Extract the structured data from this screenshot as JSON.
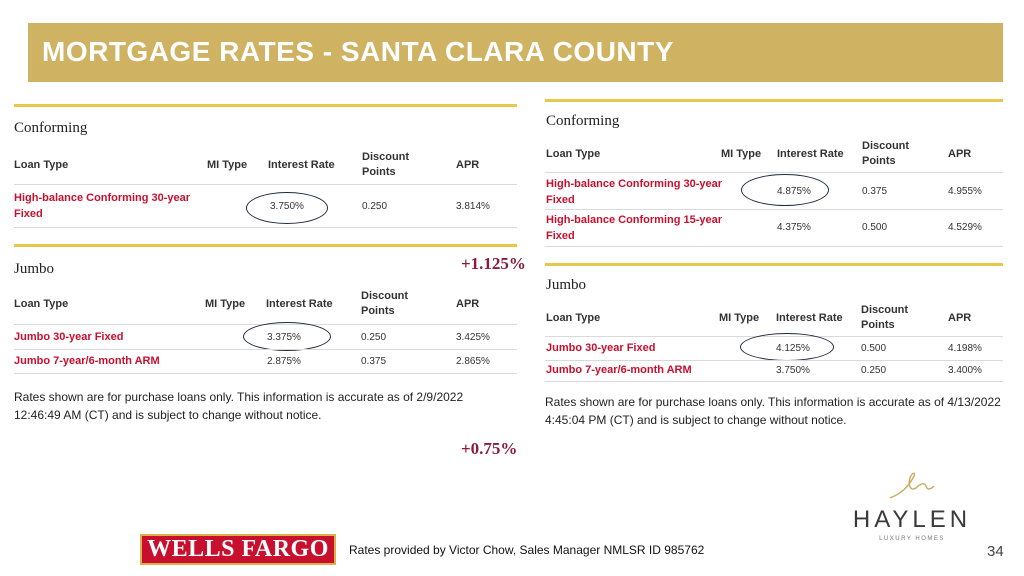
{
  "title": "MORTGAGE RATES - SANTA CLARA COUNTY",
  "left": {
    "conforming": {
      "section": "Conforming",
      "headers": [
        "Loan Type",
        "MI Type",
        "Interest Rate",
        "Discount Points",
        "APR"
      ],
      "rows": [
        {
          "loan": "High-balance Conforming 30-year Fixed",
          "rate": "3.750%",
          "points": "0.250",
          "apr": "3.814%"
        }
      ]
    },
    "jumbo": {
      "section": "Jumbo",
      "headers": [
        "Loan Type",
        "MI Type",
        "Interest Rate",
        "Discount Points",
        "APR"
      ],
      "rows": [
        {
          "loan": "Jumbo 30-year Fixed",
          "rate": "3.375%",
          "points": "0.250",
          "apr": "3.425%"
        },
        {
          "loan": "Jumbo 7-year/6-month ARM",
          "rate": "2.875%",
          "points": "0.375",
          "apr": "2.865%"
        }
      ]
    },
    "note": "Rates shown are for purchase loans only. This information is accurate as of 2/9/2022 12:46:49 AM (CT) and is subject to change without notice."
  },
  "right": {
    "conforming": {
      "section": "Conforming",
      "headers": [
        "Loan Type",
        "MI Type",
        "Interest Rate",
        "Discount Points",
        "APR"
      ],
      "rows": [
        {
          "loan": "High-balance Conforming 30-year Fixed",
          "rate": "4.875%",
          "points": "0.375",
          "apr": "4.955%"
        },
        {
          "loan": "High-balance Conforming 15-year Fixed",
          "rate": "4.375%",
          "points": "0.500",
          "apr": "4.529%"
        }
      ]
    },
    "jumbo": {
      "section": "Jumbo",
      "headers": [
        "Loan Type",
        "MI Type",
        "Interest Rate",
        "Discount Points",
        "APR"
      ],
      "rows": [
        {
          "loan": "Jumbo 30-year Fixed",
          "rate": "4.125%",
          "points": "0.500",
          "apr": "4.198%"
        },
        {
          "loan": "Jumbo 7-year/6-month ARM",
          "rate": "3.750%",
          "points": "0.250",
          "apr": "3.400%"
        }
      ]
    },
    "note": "Rates shown are for purchase loans only. This information is accurate as of 4/13/2022 4:45:04 PM (CT) and is subject to change without notice."
  },
  "deltas": {
    "jumbo_change": "+1.125%",
    "bottom_change": "+0.75%"
  },
  "footer": {
    "bank_logo_text": "WELLS FARGO",
    "credit": "Rates provided by Victor Chow,  Sales Manager NMLSR ID 985762",
    "page": "34"
  },
  "brand": {
    "name": "HAYLEN",
    "tagline": "LUXURY HOMES"
  },
  "colors": {
    "title_bar": "#cfb262",
    "loan_red": "#c8102e",
    "delta": "#8c1b3b",
    "rule": "#e8c84a"
  }
}
